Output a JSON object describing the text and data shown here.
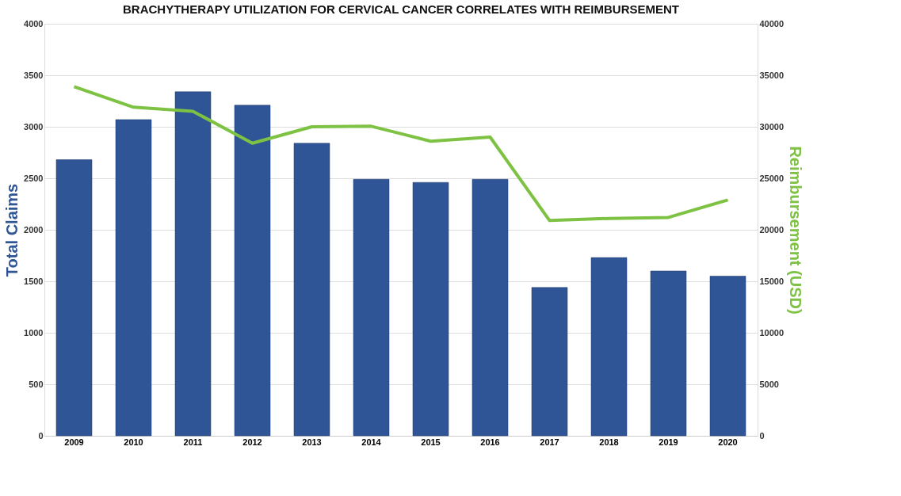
{
  "chart_data": {
    "type": "bar",
    "title": "BRACHYTHERAPY UTILIZATION FOR CERVICAL CANCER CORRELATES WITH REIMBURSEMENT",
    "ylabel": "Total Claims",
    "y2label": "Reimbursement (USD)",
    "categories": [
      "2009",
      "2010",
      "2011",
      "2012",
      "2013",
      "2014",
      "2015",
      "2016",
      "2017",
      "2018",
      "2019",
      "2020"
    ],
    "series": [
      {
        "color": "#2f5597",
        "values": [
          2680,
          3070,
          3340,
          3210,
          2840,
          2490,
          2460,
          2490,
          1440,
          1730,
          1600,
          1550
        ]
      },
      {
        "type": "line",
        "axis": "y2",
        "color": "#7dc242",
        "values": [
          33900,
          31900,
          31500,
          28400,
          30000,
          30050,
          28600,
          29000,
          20900,
          21100,
          21200,
          22900
        ]
      }
    ],
    "ylim": [
      0,
      4000
    ],
    "yticks": [
      0,
      500,
      1000,
      1500,
      2000,
      2500,
      3000,
      3500,
      4000
    ],
    "y2lim": [
      0,
      40000
    ],
    "y2ticks": [
      0,
      5000,
      10000,
      15000,
      20000,
      25000,
      30000,
      35000,
      40000
    ],
    "grid": "y",
    "marker": "none",
    "line_style": "solid"
  }
}
